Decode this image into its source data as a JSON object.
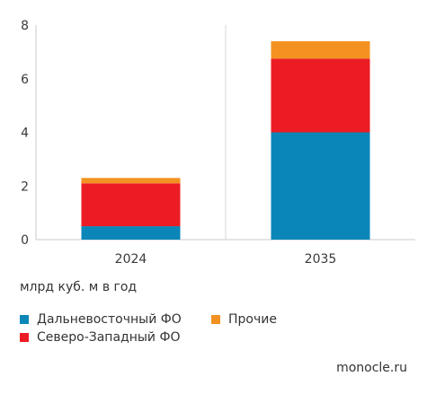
{
  "chart_data": {
    "type": "bar",
    "stacked": true,
    "categories": [
      "2024",
      "2035"
    ],
    "series": [
      {
        "name": "Дальневосточный ФО",
        "color": "#0a86b8",
        "values": [
          0.5,
          4.0
        ]
      },
      {
        "name": "Северо-Западный ФО",
        "color": "#ec1c24",
        "values": [
          1.6,
          2.75
        ]
      },
      {
        "name": "Прочие",
        "color": "#f39221",
        "values": [
          0.2,
          0.65
        ]
      }
    ],
    "ylim": [
      0,
      8
    ],
    "yticks": [
      "0",
      "2",
      "4",
      "6",
      "8"
    ],
    "unit_label": "млрд куб. м в год",
    "grid": "vertical dividers only",
    "legend_placement": "bottom"
  },
  "source": "monocle.ru"
}
